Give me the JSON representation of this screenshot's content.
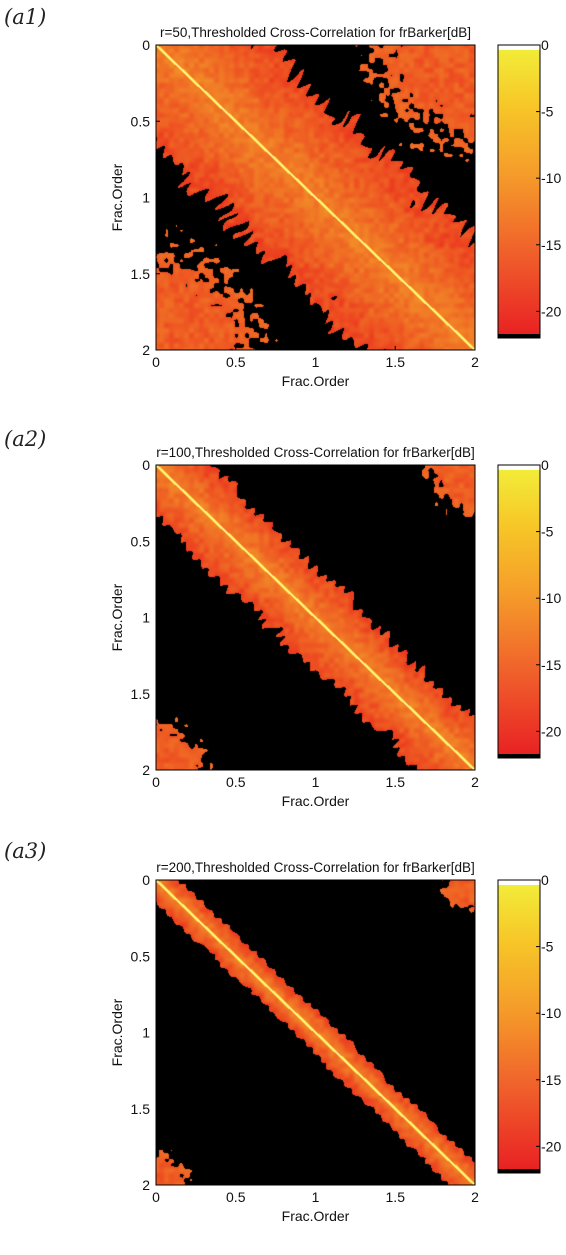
{
  "chart_data": [
    {
      "panel_label": "(a1)",
      "type": "heatmap",
      "title": "r=50,Thresholded Cross-Correlation for frBarker[dB]",
      "xlabel": "Frac.Order",
      "ylabel": "Frac.Order",
      "xlim": [
        0,
        2
      ],
      "ylim": [
        0,
        2
      ],
      "xticks": [
        "0",
        "0.5",
        "1",
        "1.5",
        "2"
      ],
      "yticks": [
        "0",
        "0.5",
        "1",
        "1.5",
        "2"
      ],
      "colorbar": {
        "ticks": [
          "0",
          "-5",
          "-10",
          "-15",
          "-20"
        ],
        "range_db": [
          -22,
          0
        ],
        "colormap": "autumn"
      },
      "diagonal_band_halfwidth_frac_order": 0.65
    },
    {
      "panel_label": "(a2)",
      "type": "heatmap",
      "title": "r=100,Thresholded Cross-Correlation for frBarker[dB]",
      "xlabel": "Frac.Order",
      "ylabel": "Frac.Order",
      "xlim": [
        0,
        2
      ],
      "ylim": [
        0,
        2
      ],
      "xticks": [
        "0",
        "0.5",
        "1",
        "1.5",
        "2"
      ],
      "yticks": [
        "0",
        "0.5",
        "1",
        "1.5",
        "2"
      ],
      "colorbar": {
        "ticks": [
          "0",
          "-5",
          "-10",
          "-15",
          "-20"
        ],
        "range_db": [
          -22,
          0
        ],
        "colormap": "autumn"
      },
      "diagonal_band_halfwidth_frac_order": 0.32
    },
    {
      "panel_label": "(a3)",
      "type": "heatmap",
      "title": "r=200,Thresholded Cross-Correlation for frBarker[dB]",
      "xlabel": "Frac.Order",
      "ylabel": "Frac.Order",
      "xlim": [
        0,
        2
      ],
      "ylim": [
        0,
        2
      ],
      "xticks": [
        "0",
        "0.5",
        "1",
        "1.5",
        "2"
      ],
      "yticks": [
        "0",
        "0.5",
        "1",
        "1.5",
        "2"
      ],
      "colorbar": {
        "ticks": [
          "0",
          "-5",
          "-10",
          "-15",
          "-20"
        ],
        "range_db": [
          -22,
          0
        ],
        "colormap": "autumn"
      },
      "diagonal_band_halfwidth_frac_order": 0.14
    }
  ]
}
